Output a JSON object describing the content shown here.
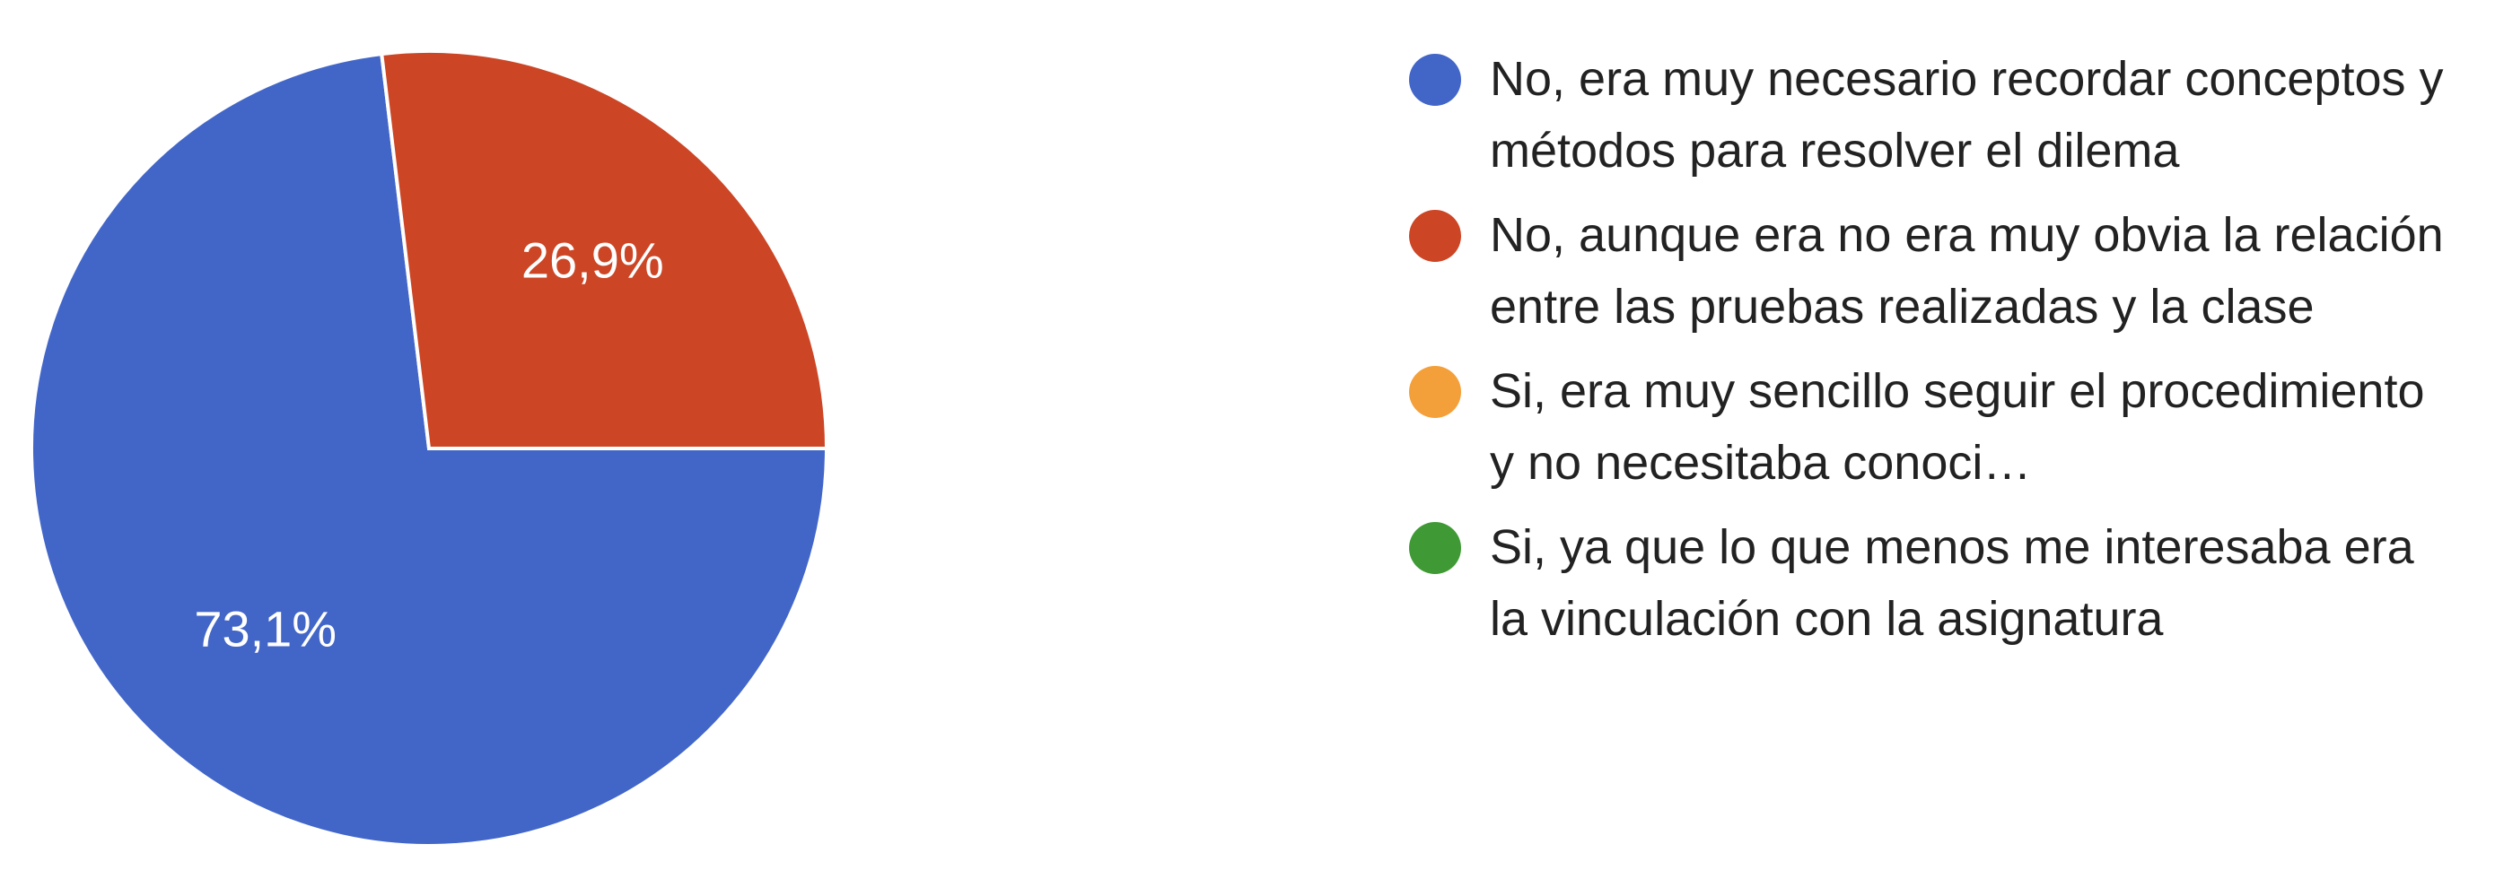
{
  "chart_data": {
    "type": "pie",
    "title": "",
    "slices": [
      {
        "label": "No, era muy necesario recordar conceptos y métodos para resolver el dilema",
        "value": 73.1,
        "display": "73,1%",
        "color": "#4266c8"
      },
      {
        "label": "No, aunque era no era muy obvia la relación entre las pruebas realizadas y la clase",
        "value": 26.9,
        "display": "26,9%",
        "color": "#cc4525"
      },
      {
        "label": "Si, era muy sencillo seguir el procedimiento y no necesitaba conocimientos de la clase",
        "value": 0,
        "display": "",
        "color": "#f4a03a"
      },
      {
        "label": "Si, ya que lo que menos me interesaba era la vinculación con la asignatura",
        "value": 0,
        "display": "",
        "color": "#3f9a35"
      }
    ],
    "legend_position": "right",
    "start": "top, clockwise"
  },
  "legend": {
    "items": [
      {
        "label": "No, era muy necesario recordar conceptos y métodos para resolver el dilema",
        "color": "#4266c8"
      },
      {
        "label": "No, aunque era no era muy obvia la relación entre las pruebas realizadas y la clase",
        "color": "#cc4525"
      },
      {
        "label": "Si, era muy sencillo seguir el procedimiento y no necesitaba conoci…",
        "color": "#f4a03a"
      },
      {
        "label": "Si, ya que lo que menos me interesaba era la vinculación con la asignatura",
        "color": "#3f9a35"
      }
    ]
  }
}
